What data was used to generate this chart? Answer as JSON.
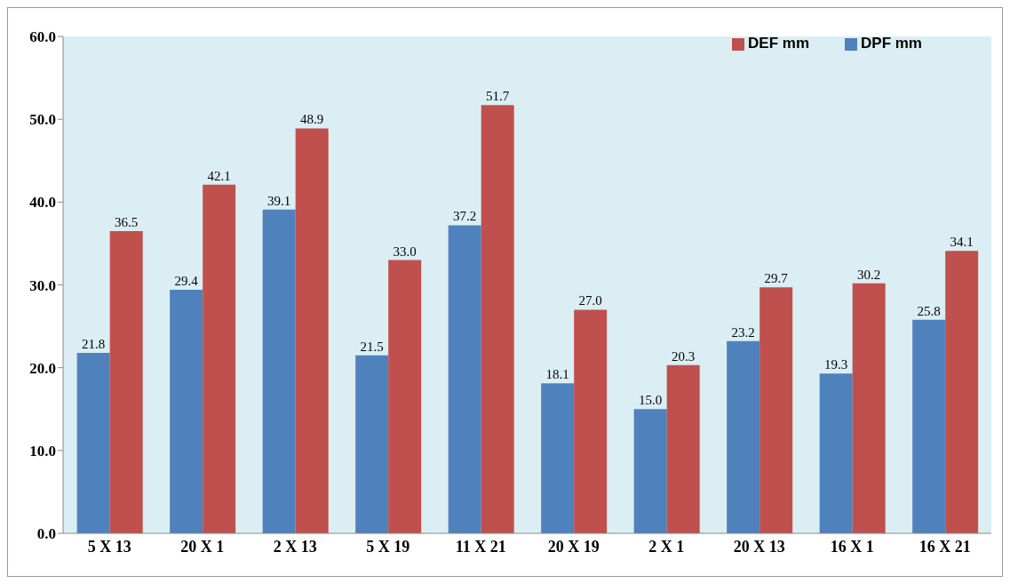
{
  "chart_data": {
    "type": "bar",
    "categories": [
      "5 X 13",
      "20 X 1",
      "2 X 13",
      "5 X 19",
      "11 X 21",
      "20 X 19",
      "2 X 1",
      "20 X 13",
      "16 X 1",
      "16 X 21"
    ],
    "series": [
      {
        "name": "DPF mm",
        "color": "#4f81bd",
        "values": [
          21.8,
          29.4,
          39.1,
          21.5,
          37.2,
          18.1,
          15.0,
          23.2,
          19.3,
          25.8
        ],
        "value_labels": [
          "21.8",
          "29.4",
          "39.1",
          "21.5",
          "37.2",
          "18.1",
          "15.0",
          "23.2",
          "19.3",
          "25.8"
        ]
      },
      {
        "name": "DEF mm",
        "color": "#c0504d",
        "values": [
          36.5,
          42.1,
          48.9,
          33.0,
          51.7,
          27.0,
          20.3,
          29.7,
          30.2,
          34.1
        ],
        "value_labels": [
          "36.5",
          "42.1",
          "48.9",
          "33.0",
          "51.7",
          "27.0",
          "20.3",
          "29.7",
          "30.2",
          "34.1"
        ]
      }
    ],
    "ylim": [
      0,
      60
    ],
    "yticks": [
      {
        "value": 0,
        "label": "0.0"
      },
      {
        "value": 10,
        "label": "10.0"
      },
      {
        "value": 20,
        "label": "20.0"
      },
      {
        "value": 30,
        "label": "30.0"
      },
      {
        "value": 40,
        "label": "40.0"
      },
      {
        "value": 50,
        "label": "50.0"
      },
      {
        "value": 60,
        "label": "60.0"
      }
    ],
    "legend": "top right"
  }
}
